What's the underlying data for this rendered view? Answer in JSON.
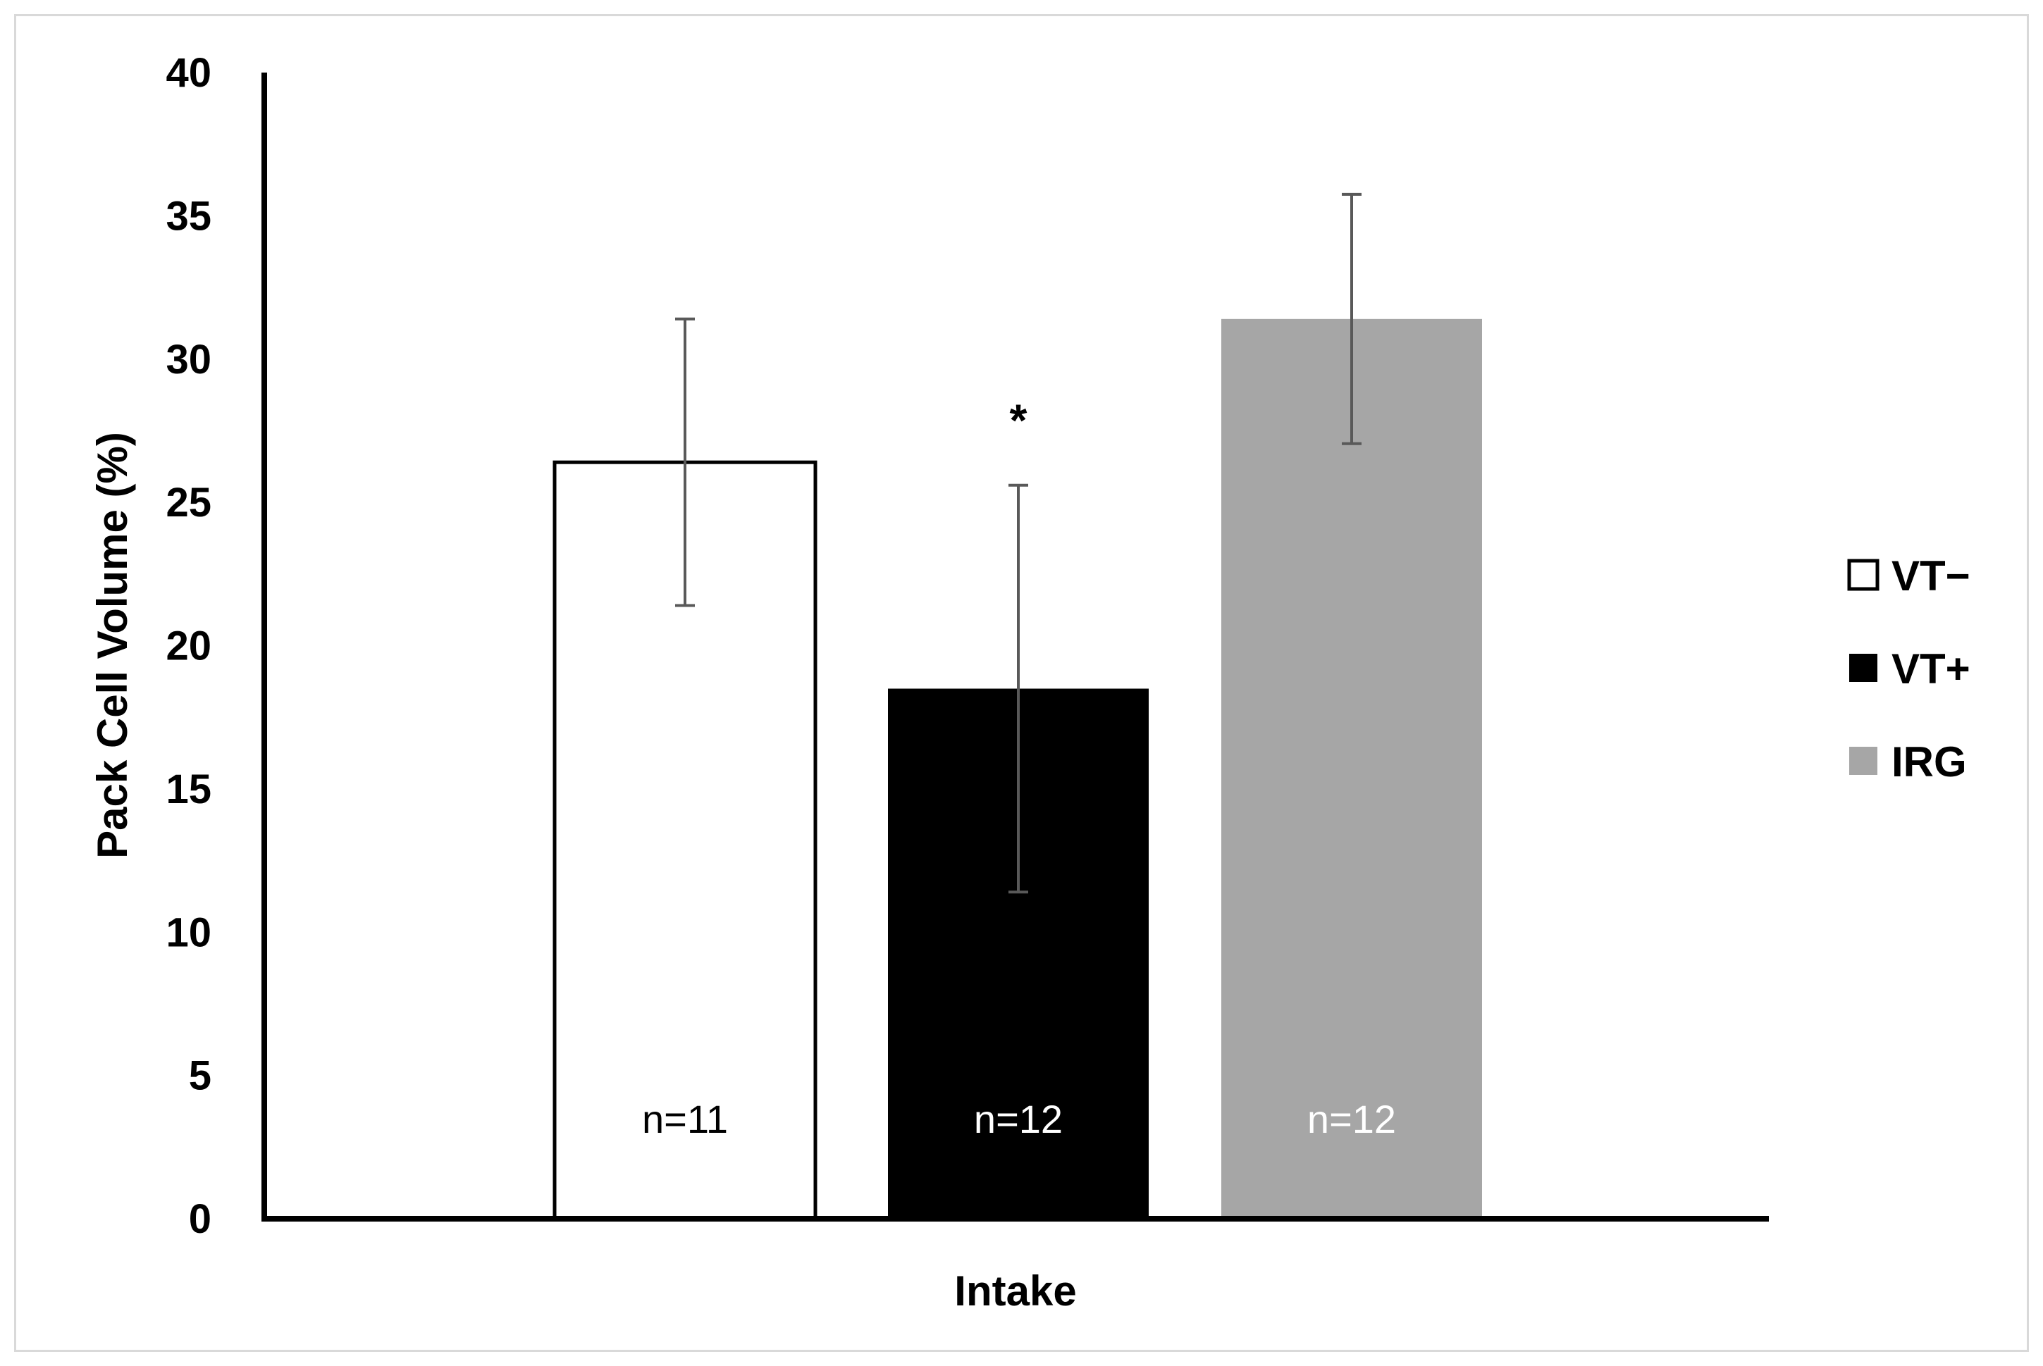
{
  "chart_data": {
    "type": "bar",
    "categories": [
      "Intake"
    ],
    "xlabel": "Intake",
    "ylabel": "Pack Cell Volume (%)",
    "ylim": [
      0,
      40
    ],
    "yticks": [
      0,
      5,
      10,
      15,
      20,
      25,
      30,
      35,
      40
    ],
    "grid": false,
    "legend_position": "right",
    "series": [
      {
        "name": "VT−",
        "value": 26.4,
        "error": 5.0,
        "n_label": "n=11",
        "annotation": "",
        "fill": "#ffffff",
        "stroke": "#000000",
        "label_color": "#000000"
      },
      {
        "name": "VT+",
        "value": 18.5,
        "error": 7.1,
        "n_label": "n=12",
        "annotation": "*",
        "fill": "#000000",
        "stroke": "#000000",
        "label_color": "#ffffff"
      },
      {
        "name": "IRG",
        "value": 31.4,
        "error": 4.35,
        "n_label": "n=12",
        "annotation": "",
        "fill": "#a6a6a6",
        "stroke": "#a6a6a6",
        "label_color": "#ffffff"
      }
    ],
    "error_bar_color": "#595959"
  }
}
